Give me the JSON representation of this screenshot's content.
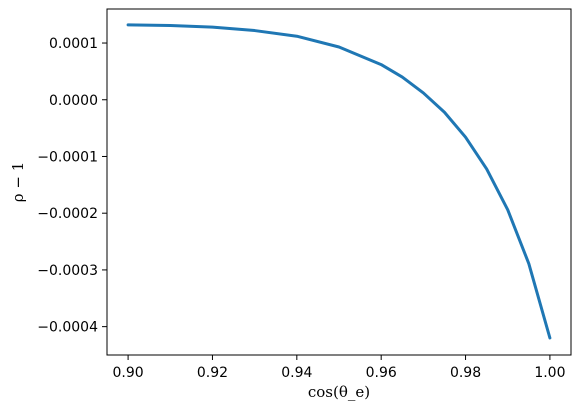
{
  "chart_data": {
    "type": "line",
    "xlabel": "cos(θ_e)",
    "ylabel": "ρ − 1",
    "xlim": [
      0.895,
      1.005
    ],
    "ylim": [
      -0.00045,
      0.00016
    ],
    "xticks": [
      0.9,
      0.92,
      0.94,
      0.96,
      0.98,
      1.0
    ],
    "xtick_labels": [
      "0.90",
      "0.92",
      "0.94",
      "0.96",
      "0.98",
      "1.00"
    ],
    "yticks": [
      0.0001,
      0.0,
      -0.0001,
      -0.0002,
      -0.0003,
      -0.0004
    ],
    "ytick_labels": [
      "0.0001",
      "0.0000",
      "−0.0001",
      "−0.0002",
      "−0.0003",
      "−0.0004"
    ],
    "grid": false,
    "series": [
      {
        "color": "#1f77b4",
        "x": [
          0.9,
          0.91,
          0.92,
          0.93,
          0.94,
          0.95,
          0.96,
          0.965,
          0.97,
          0.975,
          0.98,
          0.985,
          0.99,
          0.995,
          1.0
        ],
        "y": [
          0.000132,
          0.000131,
          0.000128,
          0.000122,
          0.000112,
          9.3e-05,
          6.2e-05,
          4e-05,
          1.2e-05,
          -2.2e-05,
          -6.6e-05,
          -0.000122,
          -0.000194,
          -0.000289,
          -0.00042
        ]
      }
    ]
  }
}
